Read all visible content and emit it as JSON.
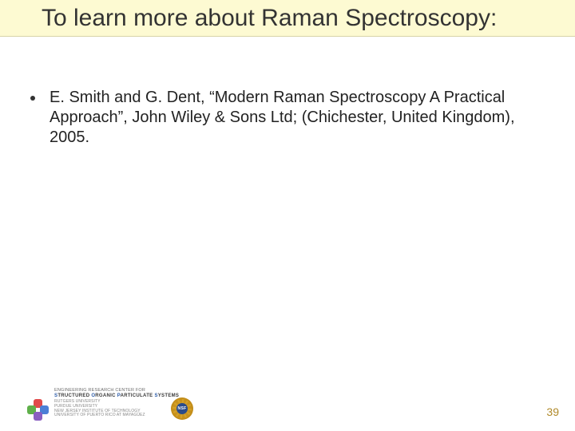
{
  "colors": {
    "title_band_bg": "#fdfad2",
    "title_band_border": "#d8d4a8",
    "title_text": "#333333",
    "body_text": "#222222",
    "page_number": "#b08a2a",
    "footer_text": "#6b6b6b",
    "footer_strong": "#3a3a3a",
    "footer_blue": "#2a5aa8",
    "background": "#ffffff",
    "nsf_gold": "#d4a028",
    "nsf_blue": "#2a4b8a",
    "logo_red": "#e14b4b",
    "logo_green": "#5fb04a",
    "logo_blue": "#4b7fd6",
    "logo_purple": "#8a5fc1"
  },
  "title": "To learn more about Raman Spectroscopy:",
  "bullets": [
    "E. Smith and G. Dent, “Modern Raman Spectroscopy A Practical Approach”, John Wiley & Sons Ltd; (Chichester, United Kingdom), 2005."
  ],
  "footer": {
    "line1": "ENGINEERING RESEARCH CENTER FOR",
    "line2_pre": "S",
    "line2_word1_rest": "TRUCTURED",
    "line2_word2_first": "O",
    "line2_word2_rest": "RGANIC",
    "line2_word3_first": "P",
    "line2_word3_rest": "ARTICULATE",
    "line2_word4_first": "S",
    "line2_word4_rest": "YSTEMS",
    "sub1": "RUTGERS UNIVERSITY",
    "sub2": "PURDUE UNIVERSITY",
    "sub3": "NEW JERSEY INSTITUTE OF TECHNOLOGY",
    "sub4": "UNIVERSITY OF PUERTO RICO AT MAYAGÜEZ",
    "nsf_label": "NSF"
  },
  "page_number": "39"
}
